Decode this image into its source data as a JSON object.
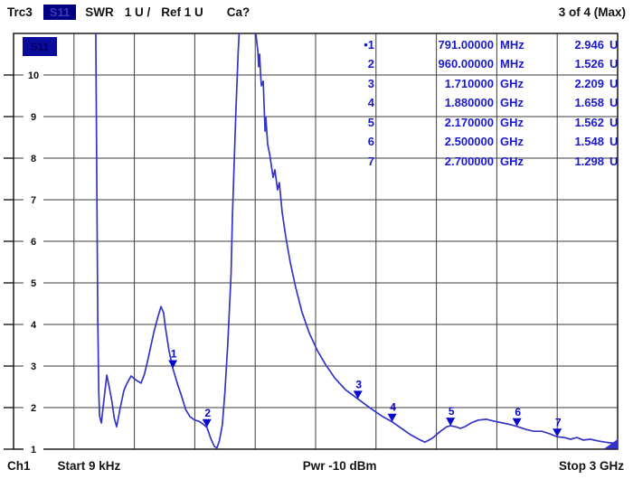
{
  "header": {
    "trace_label": "Trc3",
    "trace_selector": "S11",
    "measurement": "SWR",
    "scale_label": "1 U /",
    "ref_label": "Ref 1 U",
    "cal_status": "Ca?",
    "window_status": "3 of 4 (Max)"
  },
  "plot": {
    "trace_indicator": "S11"
  },
  "footer": {
    "channel": "Ch1",
    "start": "Start 9 kHz",
    "power": "Pwr -10 dBm",
    "stop": "Stop 3 GHz"
  },
  "colors": {
    "trace": "#3434c6",
    "marker": "#0808cc",
    "grid": "#3d3d3d",
    "border": "#1a1a1a",
    "table_text": "#1a1acc",
    "chip_bg": "#000080"
  },
  "chart_data": {
    "type": "line",
    "title": "Trc3 S11 SWR",
    "xlabel": "Frequency (Start 9 kHz, Stop 3 GHz, linear)",
    "ylabel": "SWR (U), 1 U/div, Ref 1 U",
    "x_unit": "GHz",
    "x_range": [
      9e-06,
      3.0
    ],
    "y_range": [
      1,
      11
    ],
    "y_ticks": [
      10,
      9,
      8,
      7,
      6,
      5,
      4,
      3,
      2,
      1
    ],
    "x_divisions": 10,
    "grid": true,
    "legend_position": "none",
    "series": [
      {
        "name": "S11 SWR",
        "points": [
          [
            0.408,
            11.4
          ],
          [
            0.418,
            4.2
          ],
          [
            0.423,
            2.4
          ],
          [
            0.427,
            1.8
          ],
          [
            0.436,
            1.63
          ],
          [
            0.447,
            2.1
          ],
          [
            0.463,
            2.78
          ],
          [
            0.477,
            2.45
          ],
          [
            0.489,
            2.13
          ],
          [
            0.5,
            1.75
          ],
          [
            0.512,
            1.54
          ],
          [
            0.53,
            2.0
          ],
          [
            0.548,
            2.41
          ],
          [
            0.565,
            2.6
          ],
          [
            0.584,
            2.76
          ],
          [
            0.606,
            2.67
          ],
          [
            0.633,
            2.59
          ],
          [
            0.65,
            2.8
          ],
          [
            0.665,
            3.11
          ],
          [
            0.696,
            3.8
          ],
          [
            0.715,
            4.15
          ],
          [
            0.732,
            4.43
          ],
          [
            0.745,
            4.28
          ],
          [
            0.754,
            3.93
          ],
          [
            0.772,
            3.37
          ],
          [
            0.791,
            2.946
          ],
          [
            0.815,
            2.55
          ],
          [
            0.831,
            2.33
          ],
          [
            0.855,
            1.95
          ],
          [
            0.876,
            1.78
          ],
          [
            0.9,
            1.7
          ],
          [
            0.921,
            1.67
          ],
          [
            0.942,
            1.6
          ],
          [
            0.96,
            1.526
          ],
          [
            0.98,
            1.25
          ],
          [
            0.997,
            1.07
          ],
          [
            1.01,
            1.03
          ],
          [
            1.022,
            1.2
          ],
          [
            1.037,
            1.59
          ],
          [
            1.05,
            2.4
          ],
          [
            1.064,
            3.54
          ],
          [
            1.08,
            5.2
          ],
          [
            1.087,
            6.59
          ],
          [
            1.1,
            8.5
          ],
          [
            1.105,
            9.2
          ],
          [
            1.115,
            10.5
          ],
          [
            1.123,
            11.3
          ],
          [
            1.16,
            12.5
          ],
          [
            1.199,
            11.2
          ],
          [
            1.21,
            10.7
          ],
          [
            1.213,
            10.6
          ],
          [
            1.217,
            10.2
          ],
          [
            1.222,
            10.5
          ],
          [
            1.227,
            10.0
          ],
          [
            1.231,
            9.74
          ],
          [
            1.24,
            9.85
          ],
          [
            1.249,
            8.65
          ],
          [
            1.253,
            8.98
          ],
          [
            1.262,
            8.33
          ],
          [
            1.272,
            8.1
          ],
          [
            1.28,
            7.83
          ],
          [
            1.289,
            7.54
          ],
          [
            1.298,
            7.72
          ],
          [
            1.311,
            7.24
          ],
          [
            1.32,
            7.41
          ],
          [
            1.334,
            6.7
          ],
          [
            1.352,
            6.11
          ],
          [
            1.374,
            5.5
          ],
          [
            1.401,
            4.89
          ],
          [
            1.432,
            4.3
          ],
          [
            1.468,
            3.8
          ],
          [
            1.509,
            3.37
          ],
          [
            1.549,
            3.04
          ],
          [
            1.594,
            2.72
          ],
          [
            1.648,
            2.43
          ],
          [
            1.71,
            2.209
          ],
          [
            1.774,
            1.98
          ],
          [
            1.828,
            1.8
          ],
          [
            1.88,
            1.658
          ],
          [
            1.926,
            1.5
          ],
          [
            1.971,
            1.35
          ],
          [
            2.012,
            1.24
          ],
          [
            2.043,
            1.17
          ],
          [
            2.079,
            1.26
          ],
          [
            2.12,
            1.43
          ],
          [
            2.151,
            1.54
          ],
          [
            2.17,
            1.562
          ],
          [
            2.196,
            1.54
          ],
          [
            2.219,
            1.5
          ],
          [
            2.241,
            1.54
          ],
          [
            2.272,
            1.63
          ],
          [
            2.308,
            1.7
          ],
          [
            2.349,
            1.72
          ],
          [
            2.389,
            1.67
          ],
          [
            2.43,
            1.63
          ],
          [
            2.47,
            1.59
          ],
          [
            2.5,
            1.548
          ],
          [
            2.542,
            1.48
          ],
          [
            2.582,
            1.43
          ],
          [
            2.623,
            1.43
          ],
          [
            2.663,
            1.37
          ],
          [
            2.7,
            1.298
          ],
          [
            2.735,
            1.28
          ],
          [
            2.766,
            1.24
          ],
          [
            2.798,
            1.28
          ],
          [
            2.829,
            1.22
          ],
          [
            2.865,
            1.24
          ],
          [
            2.901,
            1.2
          ],
          [
            2.937,
            1.17
          ],
          [
            2.968,
            1.15
          ],
          [
            3.0,
            1.13
          ]
        ]
      }
    ],
    "markers": [
      {
        "num": 1,
        "row_label": "•1",
        "freq": "791.00000",
        "unit": "MHz",
        "value": "2.946",
        "value_unit": "U",
        "f_ghz": 0.791,
        "swr": 2.946,
        "active": true
      },
      {
        "num": 2,
        "row_label": "2",
        "freq": "960.00000",
        "unit": "MHz",
        "value": "1.526",
        "value_unit": "U",
        "f_ghz": 0.96,
        "swr": 1.526,
        "active": false
      },
      {
        "num": 3,
        "row_label": "3",
        "freq": "1.710000",
        "unit": "GHz",
        "value": "2.209",
        "value_unit": "U",
        "f_ghz": 1.71,
        "swr": 2.209,
        "active": false
      },
      {
        "num": 4,
        "row_label": "4",
        "freq": "1.880000",
        "unit": "GHz",
        "value": "1.658",
        "value_unit": "U",
        "f_ghz": 1.88,
        "swr": 1.658,
        "active": false
      },
      {
        "num": 5,
        "row_label": "5",
        "freq": "2.170000",
        "unit": "GHz",
        "value": "1.562",
        "value_unit": "U",
        "f_ghz": 2.17,
        "swr": 1.562,
        "active": false
      },
      {
        "num": 6,
        "row_label": "6",
        "freq": "2.500000",
        "unit": "GHz",
        "value": "1.548",
        "value_unit": "U",
        "f_ghz": 2.5,
        "swr": 1.548,
        "active": false
      },
      {
        "num": 7,
        "row_label": "7",
        "freq": "2.700000",
        "unit": "GHz",
        "value": "1.298",
        "value_unit": "U",
        "f_ghz": 2.7,
        "swr": 1.298,
        "active": false
      }
    ]
  }
}
